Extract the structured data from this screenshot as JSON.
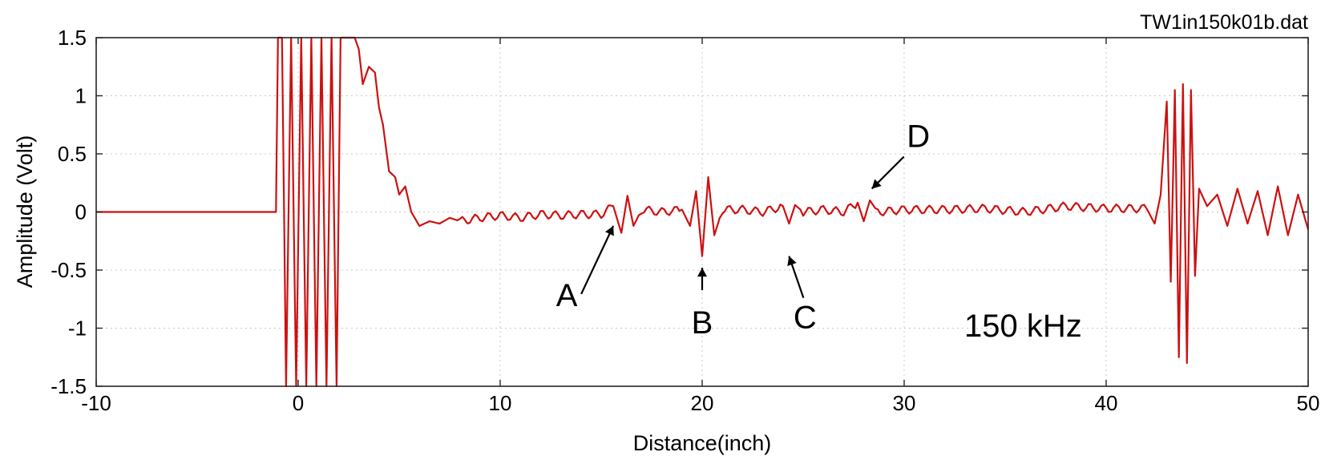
{
  "chart_data": {
    "type": "line",
    "title": "TW1in150k01b.dat",
    "xlabel": "Distance(inch)",
    "ylabel": "Amplitude (Volt)",
    "xlim": [
      -10,
      50
    ],
    "ylim": [
      -1.5,
      1.5
    ],
    "xticks": [
      -10,
      0,
      10,
      20,
      30,
      40,
      50
    ],
    "xtick_labels": [
      "-10",
      "0",
      "10",
      "20",
      "30",
      "40",
      "50"
    ],
    "yticks": [
      -1.5,
      -1,
      -0.5,
      0,
      0.5,
      1,
      1.5
    ],
    "ytick_labels": [
      "-1.5",
      "-1",
      "-0.5",
      "0",
      "0.5",
      "1",
      "1.5"
    ],
    "grid": true,
    "line_color": "#cc1111",
    "series": [
      {
        "x": [
          -10,
          -2,
          -1.1,
          -1.0,
          -0.8,
          -0.6,
          -0.35,
          -0.1,
          0.15,
          0.4,
          0.65,
          0.9,
          1.15,
          1.4,
          1.65,
          1.9,
          2.1,
          2.4,
          2.8,
          3.0,
          3.2,
          3.5,
          3.8,
          4.0,
          4.2,
          4.5,
          4.8,
          5.0,
          5.3,
          5.6,
          6.0,
          6.5,
          7.0,
          7.5,
          8.0,
          9.0,
          10.0,
          11.0,
          12.0,
          13.0,
          14.0,
          15.0,
          15.6,
          16.0,
          16.3,
          16.6,
          17.0,
          18.0,
          19.0,
          19.4,
          19.7,
          20.0,
          20.3,
          20.6,
          21.0,
          22.0,
          23.0,
          24.0,
          24.3,
          24.6,
          25.0,
          26.0,
          27.0,
          27.7,
          28.0,
          28.3,
          28.7,
          30.0,
          32.0,
          34.0,
          36.0,
          38.0,
          40.0,
          42.0,
          42.4,
          42.7,
          43.0,
          43.2,
          43.4,
          43.6,
          43.8,
          44.0,
          44.2,
          44.4,
          44.6,
          45.0,
          45.5,
          46.0,
          46.5,
          47.0,
          47.5,
          48.0,
          48.5,
          49.0,
          49.5,
          50.0
        ],
        "y": [
          0,
          0,
          0,
          1.5,
          1.5,
          -1.5,
          1.5,
          -1.5,
          1.5,
          -1.5,
          1.5,
          -1.5,
          1.5,
          -1.5,
          1.5,
          -1.5,
          1.5,
          1.5,
          1.5,
          1.4,
          1.1,
          1.25,
          1.2,
          0.9,
          0.75,
          0.35,
          0.3,
          0.15,
          0.22,
          0.0,
          -0.12,
          -0.08,
          -0.1,
          -0.05,
          -0.08,
          -0.05,
          -0.03,
          -0.05,
          -0.02,
          -0.03,
          -0.02,
          -0.02,
          0.05,
          -0.18,
          0.14,
          -0.12,
          0.02,
          0.0,
          0.02,
          -0.12,
          0.18,
          -0.38,
          0.3,
          -0.2,
          0.02,
          0.02,
          0.0,
          0.05,
          -0.1,
          0.06,
          0.0,
          0.02,
          0.0,
          0.08,
          -0.08,
          0.1,
          0.0,
          0.02,
          0.02,
          0.03,
          0.0,
          0.05,
          0.03,
          0.03,
          -0.1,
          0.15,
          0.95,
          -0.6,
          1.05,
          -1.25,
          1.1,
          -1.3,
          1.05,
          -0.55,
          0.2,
          0.05,
          0.15,
          -0.12,
          0.2,
          -0.1,
          0.18,
          -0.2,
          0.22,
          -0.2,
          0.15,
          -0.15
        ]
      }
    ],
    "annotations": [
      {
        "label": "A",
        "x": 15.6,
        "y": -0.12
      },
      {
        "label": "B",
        "x": 20.0,
        "y": -0.48
      },
      {
        "label": "C",
        "x": 24.3,
        "y": -0.38
      },
      {
        "label": "D",
        "x": 28.4,
        "y": 0.2
      }
    ],
    "text_annotations": [
      "150 kHz"
    ]
  }
}
